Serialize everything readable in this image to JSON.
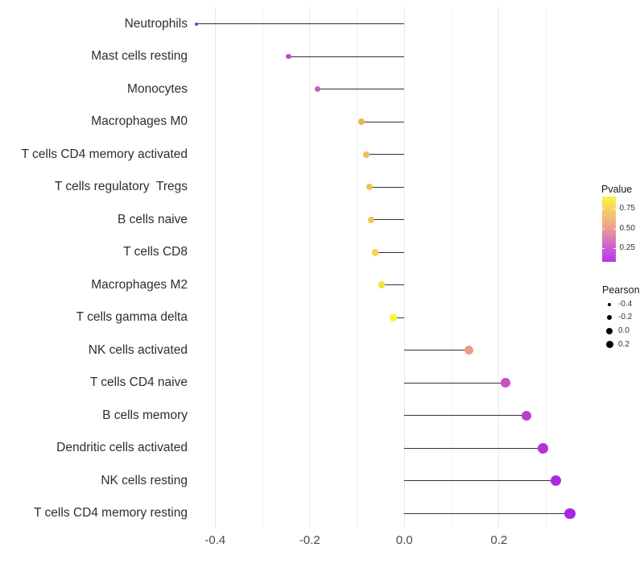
{
  "figure": {
    "background": "#ffffff"
  },
  "chart_data": {
    "type": "scatter",
    "variant": "lollipop",
    "title": "",
    "xlabel": "",
    "ylabel": "",
    "xlim": [
      -0.47,
      0.39
    ],
    "grid": true,
    "baseline_x": 0.0,
    "x_major_ticks": [
      {
        "value": -0.4,
        "label": "-0.4"
      },
      {
        "value": -0.2,
        "label": "-0.2"
      },
      {
        "value": 0.0,
        "label": "0.0"
      },
      {
        "value": 0.2,
        "label": "0.2"
      }
    ],
    "x_minor_ticks": [
      -0.3,
      -0.1,
      0.1,
      0.3
    ],
    "points": [
      {
        "label": "Neutrophils",
        "pearson": -0.44,
        "pvalue": 0.07,
        "color": "#8e2bd0"
      },
      {
        "label": "Mast cells resting",
        "pearson": -0.245,
        "pvalue": 0.21,
        "color": "#bb4ec5"
      },
      {
        "label": "Monocytes",
        "pearson": -0.184,
        "pvalue": 0.3,
        "color": "#c65ec6"
      },
      {
        "label": "Macrophages M0",
        "pearson": -0.091,
        "pvalue": 0.65,
        "color": "#eeb25f"
      },
      {
        "label": "T cells CD4 memory activated",
        "pearson": -0.081,
        "pvalue": 0.67,
        "color": "#f0b95e"
      },
      {
        "label": "T cells regulatory  Tregs",
        "pearson": -0.074,
        "pvalue": 0.7,
        "color": "#f1c15c"
      },
      {
        "label": "B cells naive",
        "pearson": -0.07,
        "pvalue": 0.71,
        "color": "#f2c55a"
      },
      {
        "label": "T cells CD8",
        "pearson": -0.062,
        "pvalue": 0.77,
        "color": "#f5d350"
      },
      {
        "label": "Macrophages M2",
        "pearson": -0.048,
        "pvalue": 0.84,
        "color": "#f8e23f"
      },
      {
        "label": "T cells gamma delta",
        "pearson": -0.024,
        "pvalue": 0.91,
        "color": "#fdf32c"
      },
      {
        "label": "NK cells activated",
        "pearson": 0.137,
        "pvalue": 0.5,
        "color": "#ec9c8b"
      },
      {
        "label": "T cells CD4 naive",
        "pearson": 0.214,
        "pvalue": 0.24,
        "color": "#c94fc6"
      },
      {
        "label": "B cells memory",
        "pearson": 0.258,
        "pvalue": 0.17,
        "color": "#bc3ecf"
      },
      {
        "label": "Dendritic cells activated",
        "pearson": 0.293,
        "pvalue": 0.12,
        "color": "#b231d9"
      },
      {
        "label": "NK cells resting",
        "pearson": 0.321,
        "pvalue": 0.1,
        "color": "#ab2ade"
      },
      {
        "label": "T cells CD4 memory resting",
        "pearson": 0.35,
        "pvalue": 0.08,
        "color": "#a825e3"
      }
    ],
    "legend_position": "right",
    "legends": {
      "pvalue": {
        "title": "Pvalue",
        "range": [
          0.065,
          0.91
        ],
        "ticks": [
          {
            "label": "0.75",
            "frac_from_top": 0.19
          },
          {
            "label": "0.50",
            "frac_from_top": 0.49
          },
          {
            "label": "0.25",
            "frac_from_top": 0.785
          }
        ],
        "gradient_top_to_bottom": [
          {
            "color": "#fdf53d",
            "pos": 0.0
          },
          {
            "color": "#f6d45e",
            "pos": 0.19
          },
          {
            "color": "#eb9e92",
            "pos": 0.49
          },
          {
            "color": "#c95ed3",
            "pos": 0.785
          },
          {
            "color": "#b438e9",
            "pos": 1.0
          }
        ]
      },
      "pearson": {
        "title": "Pearson",
        "dot_color": "#000000",
        "entries": [
          {
            "label": "-0.4",
            "value": -0.4
          },
          {
            "label": "-0.2",
            "value": -0.2
          },
          {
            "label": "0.0",
            "value": 0.0
          },
          {
            "label": "0.2",
            "value": 0.2
          }
        ]
      }
    }
  }
}
